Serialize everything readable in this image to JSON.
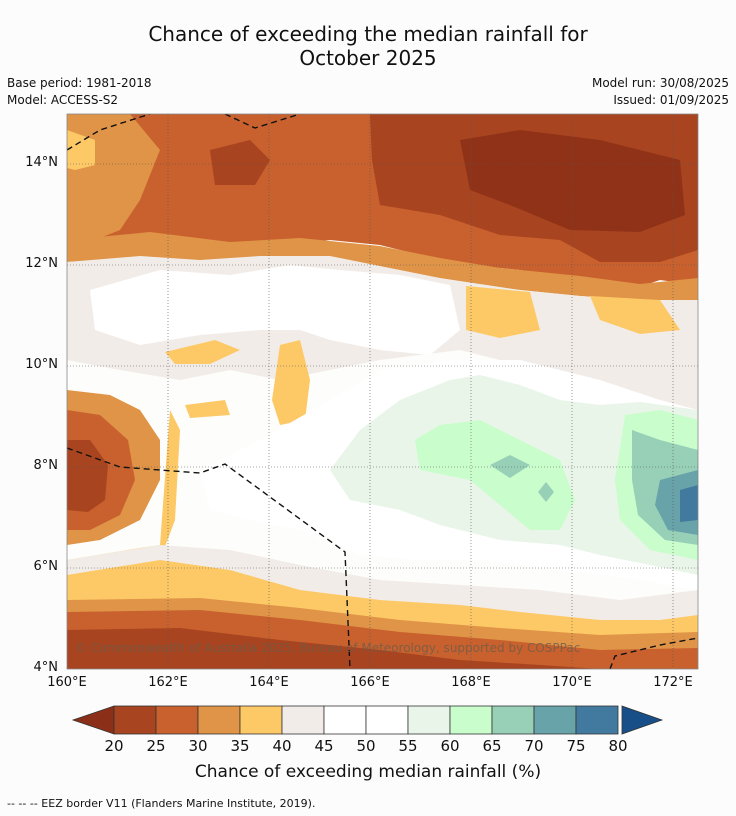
{
  "title_line1": "Chance of exceeding the median rainfall for",
  "title_line2": "October 2025",
  "base_period": "Base period: 1981-2018",
  "model": "Model: ACCESS-S2",
  "model_run": "Model run: 30/08/2025",
  "issued": "Issued: 01/09/2025",
  "copyright": "© Commonwealth of Australia 2025, Bureau of Meteorology, supported by COSPPac",
  "lat_labels": [
    "14°N",
    "12°N",
    "10°N",
    "8°N",
    "6°N",
    "4°N"
  ],
  "lon_labels": [
    "160°E",
    "162°E",
    "164°E",
    "166°E",
    "168°E",
    "170°E",
    "172°E"
  ],
  "colorbar": {
    "title": "Chance of exceeding median rainfall (%)",
    "ticks": [
      "20",
      "25",
      "30",
      "35",
      "40",
      "45",
      "50",
      "55",
      "60",
      "65",
      "70",
      "75",
      "80"
    ],
    "colors": [
      "#a8441f",
      "#c8612e",
      "#e09447",
      "#fdc966",
      "#f1ece8",
      "#ffffff",
      "#ffffff",
      "#e9f5e9",
      "#c9fdcc",
      "#97d0b7",
      "#68a3a9",
      "#427a9f"
    ],
    "under_color": "#8c2f18",
    "over_color": "#184f89"
  },
  "footer": "--  --  -- EEZ border V11 (Flanders Marine Institute, 2019)."
}
